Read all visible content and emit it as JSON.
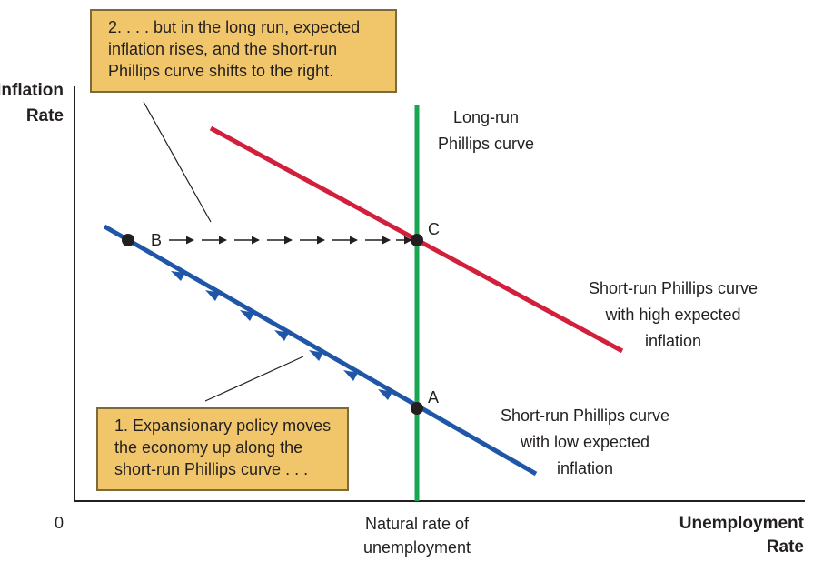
{
  "axes": {
    "y_label_line1": "Inflation",
    "y_label_line2": "Rate",
    "x_label_line1": "Unemployment",
    "x_label_line2": "Rate",
    "origin": "0",
    "natural_rate_line1": "Natural rate of",
    "natural_rate_line2": "unemployment"
  },
  "curves": {
    "long_run": {
      "line1": "Long-run",
      "line2": "Phillips curve",
      "color": "#1aa550"
    },
    "high": {
      "line1": "Short-run Phillips curve",
      "line2": "with high expected",
      "line3": "inflation",
      "color": "#d21f3c"
    },
    "low": {
      "line1": "Short-run Phillips curve",
      "line2": "with low expected",
      "line3": "inflation",
      "color": "#1f56a8"
    }
  },
  "points": {
    "a": "A",
    "b": "B",
    "c": "C"
  },
  "callouts": {
    "top": {
      "line1": "2. . . . but in the long run, expected",
      "line2": "inflation rises, and the short-run",
      "line3": "Phillips curve shifts to the right."
    },
    "bottom": {
      "line1": "1. Expansionary policy moves",
      "line2": "the economy up along the",
      "line3": "short-run Phillips curve . . ."
    }
  },
  "callout_color": "#f1c66b"
}
